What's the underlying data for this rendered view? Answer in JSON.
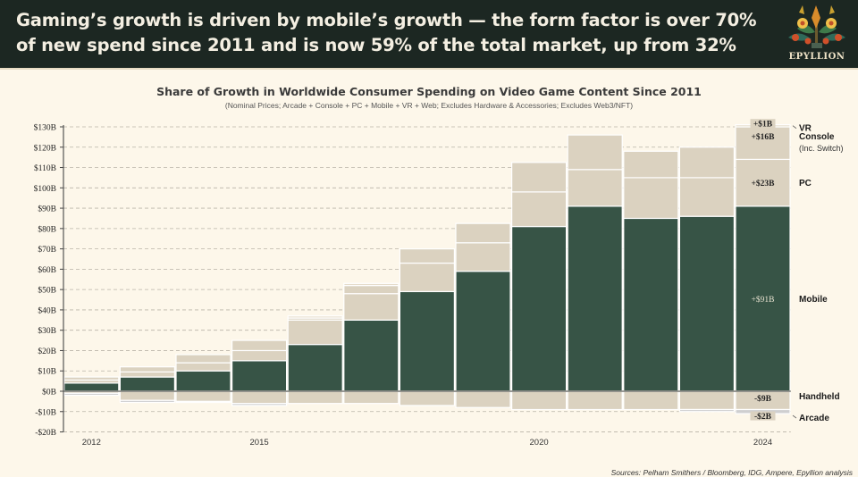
{
  "header": {
    "headline": "Gaming’s growth is driven by mobile’s growth — the form factor is over 70% of new spend since 2011 and is now 59% of the total market, up from 32%",
    "logo_text": "EPYLLION",
    "logo_icon": "floral-tree-icon"
  },
  "footer": {
    "sources": "Sources: Pelham Smithers / Bloomberg, IDG, Ampere, Epyllion analysis"
  },
  "colors": {
    "header_bg": "#1c2722",
    "background": "#fdf7ea",
    "mobile": "#375446",
    "other": "#dbd2c0",
    "vr": "#e6ddcc",
    "arcade": "#cfcfd0"
  },
  "chart_data": {
    "type": "bar",
    "stacked": true,
    "title": "Share of Growth in Worldwide Consumer Spending on Video Game Content Since 2011",
    "subtitle": "(Nominal Prices; Arcade + Console + PC + Mobile + VR + Web; Excludes Hardware & Accessories; Excludes Web3/NFT)",
    "xlabel": "",
    "ylabel": "",
    "ylim": [
      -20,
      130
    ],
    "yticks": [
      -20,
      -10,
      0,
      10,
      20,
      30,
      40,
      50,
      60,
      70,
      80,
      90,
      100,
      110,
      120,
      130
    ],
    "ytick_labels": [
      "-$20B",
      "-$10B",
      "$0B",
      "$10B",
      "$20B",
      "$30B",
      "$40B",
      "$50B",
      "$60B",
      "$70B",
      "$80B",
      "$90B",
      "$100B",
      "$110B",
      "$120B",
      "$130B"
    ],
    "grid": true,
    "categories": [
      "2012",
      "2013",
      "2014",
      "2015",
      "2016",
      "2017",
      "2018",
      "2019",
      "2020",
      "2021",
      "2022",
      "2023",
      "2024"
    ],
    "xtick_labels": [
      "2012",
      "2015",
      "2020",
      "2024"
    ],
    "series": [
      {
        "name": "Mobile",
        "values": [
          4,
          7,
          10,
          15,
          23,
          35,
          49,
          59,
          81,
          91,
          85,
          86,
          91
        ]
      },
      {
        "name": "PC",
        "values": [
          1.5,
          2.5,
          4,
          5,
          12,
          13,
          14,
          14,
          17,
          18,
          20,
          19,
          23
        ]
      },
      {
        "name": "Console (Inc. Switch)",
        "values": [
          1.5,
          2.5,
          4,
          5,
          1,
          4,
          7,
          9.5,
          14.5,
          17,
          13,
          15,
          16
        ]
      },
      {
        "name": "VR",
        "values": [
          0,
          0,
          0,
          0,
          1,
          1,
          0,
          0,
          0,
          0,
          0,
          0,
          1
        ]
      },
      {
        "name": "Handheld",
        "values": [
          -1,
          -4.5,
          -5,
          -6,
          -6,
          -6,
          -7,
          -8,
          -9,
          -9,
          -9,
          -9,
          -9
        ]
      },
      {
        "name": "Arcade",
        "values": [
          -1,
          -1,
          -0.5,
          -1,
          0,
          0,
          0,
          0,
          0,
          0,
          0,
          -1,
          -2
        ]
      }
    ],
    "annotations_2024": [
      {
        "series": "VR",
        "label": "+$1B",
        "legend": "VR"
      },
      {
        "series": "Console (Inc. Switch)",
        "label": "+$16B",
        "legend": "Console",
        "legend_sub": "(Inc. Switch)"
      },
      {
        "series": "PC",
        "label": "+$23B",
        "legend": "PC"
      },
      {
        "series": "Mobile",
        "label": "+$91B",
        "legend": "Mobile"
      },
      {
        "series": "Handheld",
        "label": "-$9B",
        "legend": "Handheld"
      },
      {
        "series": "Arcade",
        "label": "-$2B",
        "legend": "Arcade"
      }
    ]
  }
}
